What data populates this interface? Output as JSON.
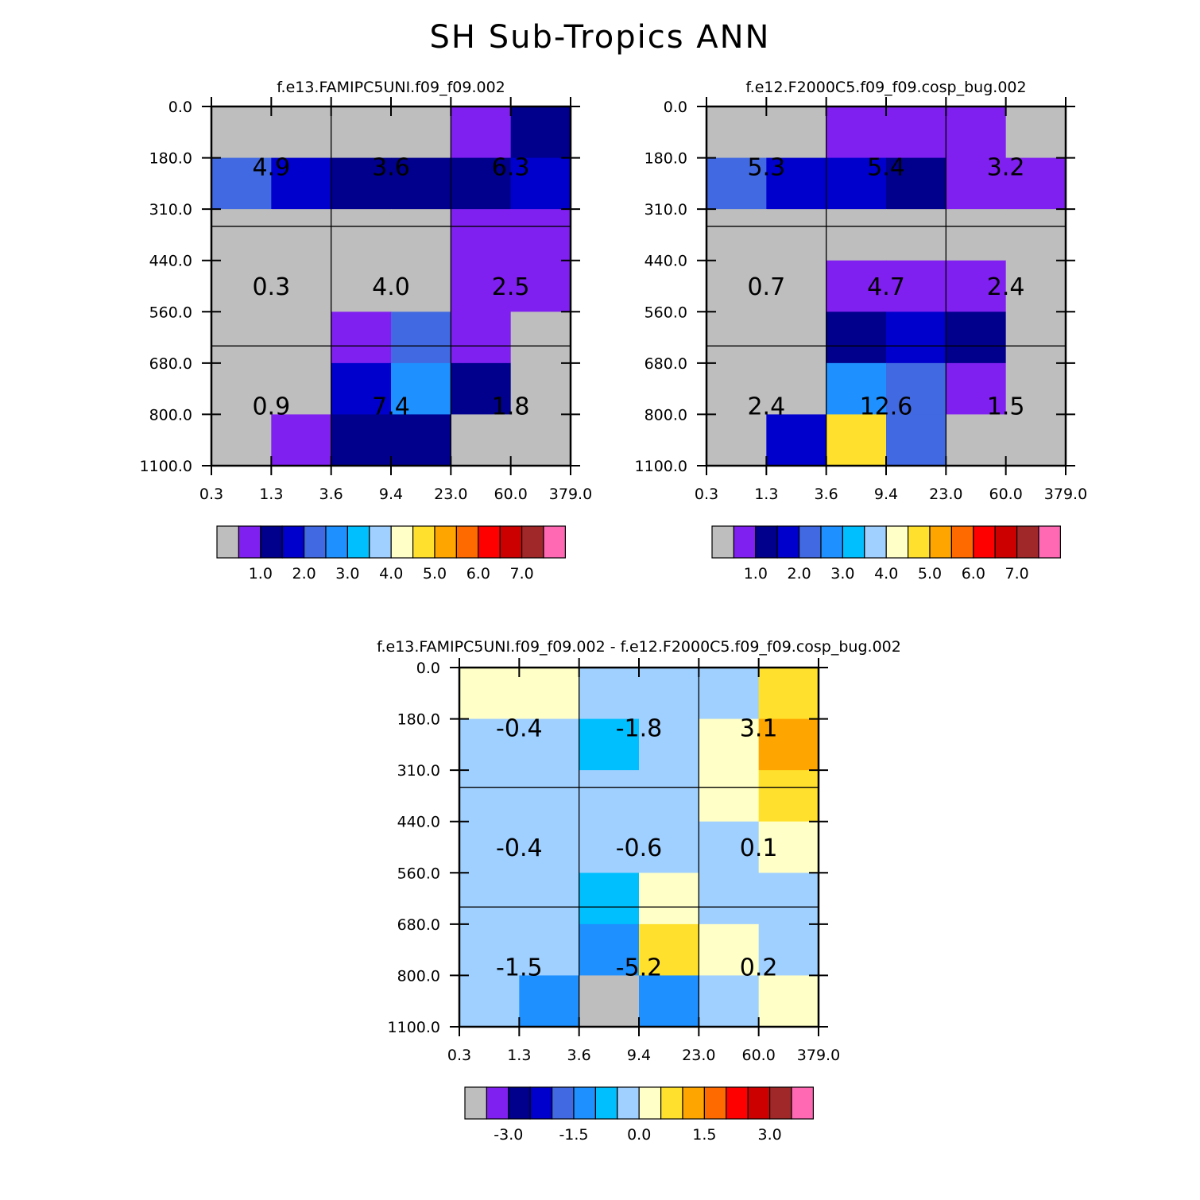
{
  "page": {
    "title": "SH Sub-Tropics ANN"
  },
  "chart_data": [
    {
      "type": "heatmap",
      "title": "f.e13.FAMIPC5UNI.f09_f09.002",
      "x_ticks": [
        "0.3",
        "1.3",
        "3.6",
        "9.4",
        "23.0",
        "60.0",
        "379.0"
      ],
      "y_ticks": [
        "0.0",
        "180.0",
        "310.0",
        "440.0",
        "560.0",
        "680.0",
        "800.0",
        "1100.0"
      ],
      "cells": [
        [
          "gray",
          "gray",
          "gray",
          "gray",
          "purple",
          "navy"
        ],
        [
          "royal",
          "blue",
          "navy",
          "navy",
          "navy",
          "blue"
        ],
        [
          "gray",
          "gray",
          "gray",
          "gray",
          "purple",
          "purple"
        ],
        [
          "gray",
          "gray",
          "gray",
          "gray",
          "purple",
          "purple"
        ],
        [
          "gray",
          "gray",
          "purple",
          "royal",
          "purple",
          "gray"
        ],
        [
          "gray",
          "gray",
          "blue",
          "dodger",
          "navy",
          "gray"
        ],
        [
          "gray",
          "purple",
          "navy",
          "navy",
          "gray",
          "gray"
        ]
      ],
      "block_values": [
        [
          "4.9",
          "3.6",
          "6.3"
        ],
        [
          "0.3",
          "4.0",
          "2.5"
        ],
        [
          "0.9",
          "7.4",
          "1.8"
        ]
      ],
      "colorbar": {
        "colors": [
          "gray",
          "purple",
          "navy",
          "blue",
          "royal",
          "dodger",
          "deepsky",
          "lightblue",
          "lightyellow",
          "gold",
          "orange",
          "darkorange",
          "red",
          "crimson",
          "brown",
          "pink"
        ],
        "labels": [
          "1.0",
          "2.0",
          "3.0",
          "4.0",
          "5.0",
          "6.0",
          "7.0"
        ]
      }
    },
    {
      "type": "heatmap",
      "title": "f.e12.F2000C5.f09_f09.cosp_bug.002",
      "x_ticks": [
        "0.3",
        "1.3",
        "3.6",
        "9.4",
        "23.0",
        "60.0",
        "379.0"
      ],
      "y_ticks": [
        "0.0",
        "180.0",
        "310.0",
        "440.0",
        "560.0",
        "680.0",
        "800.0",
        "1100.0"
      ],
      "cells": [
        [
          "gray",
          "gray",
          "purple",
          "purple",
          "purple",
          "gray"
        ],
        [
          "royal",
          "blue",
          "blue",
          "navy",
          "purple",
          "purple"
        ],
        [
          "gray",
          "gray",
          "gray",
          "gray",
          "gray",
          "gray"
        ],
        [
          "gray",
          "gray",
          "purple",
          "purple",
          "purple",
          "gray"
        ],
        [
          "gray",
          "gray",
          "navy",
          "blue",
          "navy",
          "gray"
        ],
        [
          "gray",
          "gray",
          "dodger",
          "royal",
          "purple",
          "gray"
        ],
        [
          "gray",
          "blue",
          "gold",
          "royal",
          "gray",
          "gray"
        ]
      ],
      "block_values": [
        [
          "5.3",
          "5.4",
          "3.2"
        ],
        [
          "0.7",
          "4.7",
          "2.4"
        ],
        [
          "2.4",
          "12.6",
          "1.5"
        ]
      ],
      "colorbar": {
        "colors": [
          "gray",
          "purple",
          "navy",
          "blue",
          "royal",
          "dodger",
          "deepsky",
          "lightblue",
          "lightyellow",
          "gold",
          "orange",
          "darkorange",
          "red",
          "crimson",
          "brown",
          "pink"
        ],
        "labels": [
          "1.0",
          "2.0",
          "3.0",
          "4.0",
          "5.0",
          "6.0",
          "7.0"
        ]
      }
    },
    {
      "type": "heatmap",
      "title": "f.e13.FAMIPC5UNI.f09_f09.002 - f.e12.F2000C5.f09_f09.cosp_bug.002",
      "x_ticks": [
        "0.3",
        "1.3",
        "3.6",
        "9.4",
        "23.0",
        "60.0",
        "379.0"
      ],
      "y_ticks": [
        "0.0",
        "180.0",
        "310.0",
        "440.0",
        "560.0",
        "680.0",
        "800.0",
        "1100.0"
      ],
      "cells": [
        [
          "lightyellow",
          "lightyellow",
          "lightblue",
          "lightblue",
          "lightblue",
          "gold"
        ],
        [
          "lightblue",
          "lightblue",
          "deepsky",
          "lightblue",
          "lightyellow",
          "orange"
        ],
        [
          "lightblue",
          "lightblue",
          "lightblue",
          "lightblue",
          "lightyellow",
          "gold"
        ],
        [
          "lightblue",
          "lightblue",
          "lightblue",
          "lightblue",
          "lightblue",
          "lightyellow"
        ],
        [
          "lightblue",
          "lightblue",
          "deepsky",
          "lightyellow",
          "lightblue",
          "lightblue"
        ],
        [
          "lightblue",
          "lightblue",
          "dodger",
          "gold",
          "lightyellow",
          "lightblue"
        ],
        [
          "lightblue",
          "dodger",
          "gray",
          "dodger",
          "lightblue",
          "lightyellow"
        ]
      ],
      "block_values": [
        [
          "-0.4",
          "-1.8",
          "3.1"
        ],
        [
          "-0.4",
          "-0.6",
          "0.1"
        ],
        [
          "-1.5",
          "-5.2",
          "0.2"
        ]
      ],
      "colorbar": {
        "colors": [
          "gray",
          "purple",
          "navy",
          "blue",
          "royal",
          "dodger",
          "deepsky",
          "lightblue",
          "lightyellow",
          "gold",
          "orange",
          "darkorange",
          "red",
          "crimson",
          "brown",
          "pink"
        ],
        "labels": [
          "-3.0",
          "-1.5",
          "0.0",
          "1.5",
          "3.0"
        ]
      }
    }
  ],
  "palette": {
    "gray": "#bebebe",
    "purple": "#8020f0",
    "navy": "#00008c",
    "blue": "#0000cd",
    "royal": "#4169e1",
    "dodger": "#1e90ff",
    "deepsky": "#00bfff",
    "lightblue": "#a0d0ff",
    "lightyellow": "#ffffc8",
    "gold": "#ffe12d",
    "orange": "#ffa500",
    "darkorange": "#ff6a00",
    "red": "#ff0000",
    "crimson": "#cd0000",
    "brown": "#a02828",
    "pink": "#ff69b4"
  }
}
